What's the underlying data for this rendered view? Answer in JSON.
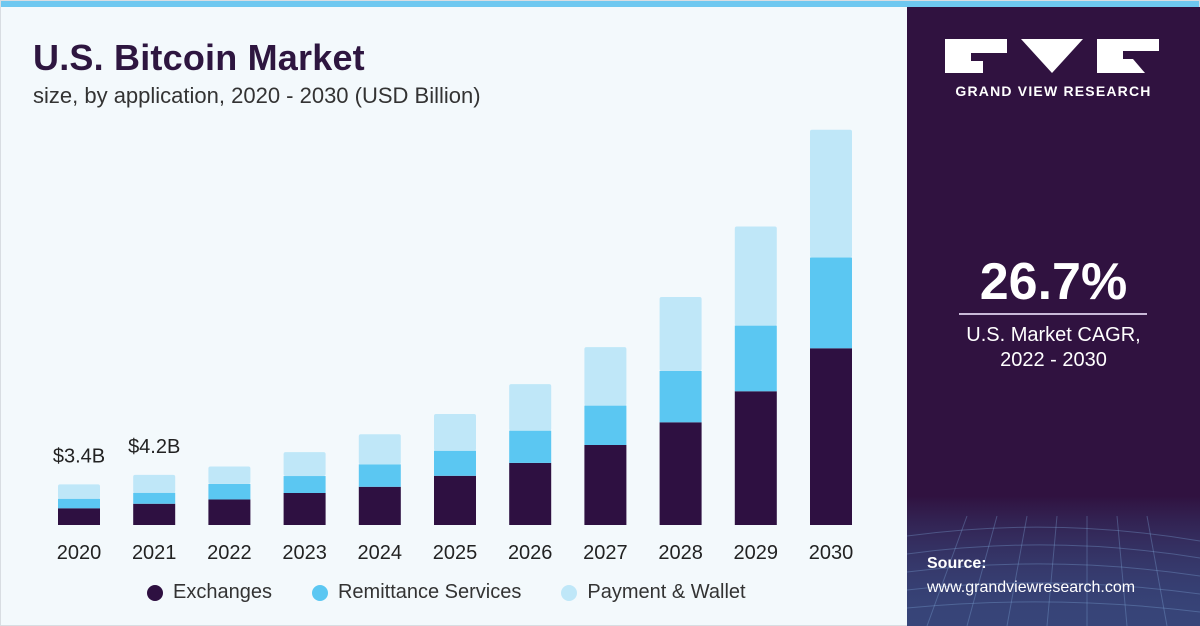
{
  "header": {
    "title": "U.S. Bitcoin Market",
    "subtitle": "size, by application, 2020 - 2030 (USD Billion)"
  },
  "chart_data": {
    "type": "bar",
    "stacked": true,
    "categories": [
      "2020",
      "2021",
      "2022",
      "2023",
      "2024",
      "2025",
      "2026",
      "2027",
      "2028",
      "2029",
      "2030"
    ],
    "series": [
      {
        "name": "Exchanges",
        "color": "#2e1041",
        "values": [
          1.4,
          1.78,
          2.14,
          2.68,
          3.2,
          4.12,
          5.2,
          6.7,
          8.6,
          11.2,
          14.8
        ]
      },
      {
        "name": "Remittance Services",
        "color": "#5bc7f2",
        "values": [
          0.8,
          0.92,
          1.3,
          1.42,
          1.88,
          2.1,
          2.7,
          3.3,
          4.3,
          5.5,
          7.6
        ]
      },
      {
        "name": "Payment & Wallet",
        "color": "#bfe7f8",
        "values": [
          1.2,
          1.5,
          1.46,
          2.0,
          2.52,
          3.08,
          3.9,
          4.9,
          6.2,
          8.3,
          10.7
        ]
      }
    ],
    "value_labels": [
      {
        "category": "2020",
        "text": "$3.4B"
      },
      {
        "category": "2021",
        "text": "$4.2B"
      }
    ],
    "ylim": [
      0,
      33.5
    ],
    "xlabel": "",
    "ylabel": "",
    "grid": false,
    "legend_position": "bottom"
  },
  "sidebar": {
    "logo_text": "GRAND VIEW RESEARCH",
    "cagr_value": "26.7%",
    "cagr_label_line1": "U.S. Market CAGR,",
    "cagr_label_line2": "2022 - 2030",
    "source_label": "Source:",
    "source_url": "www.grandviewresearch.com"
  },
  "colors": {
    "sidebar_bg": "#301240",
    "top_bar": "#6ec8f0",
    "title": "#2e1640"
  }
}
